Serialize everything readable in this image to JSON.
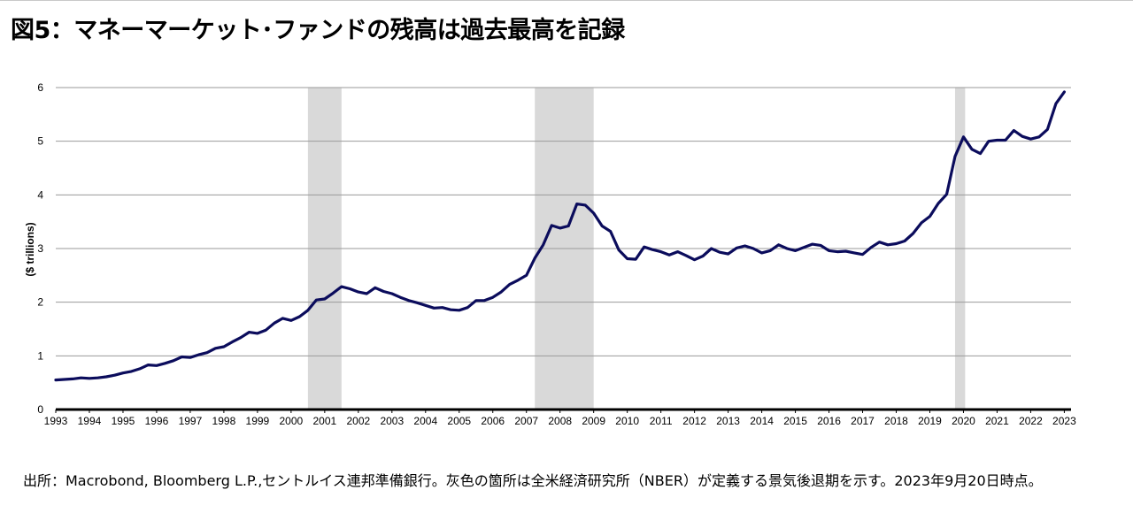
{
  "title": "図5：マネーマーケット･ファンドの残高は過去最高を記録",
  "source": "出所：Macrobond, Bloomberg L.P.,セントルイス連邦準備銀行。灰色の箇所は全米経済研究所（NBER）が定義する景気後退期を示す。2023年9月20日時点。",
  "chart_data": {
    "type": "line",
    "title": "図5：マネーマーケット･ファンドの残高は過去最高を記録",
    "xlabel": "",
    "ylabel": "($ trillions)",
    "ylim": [
      0,
      6
    ],
    "xlim": [
      1993,
      2023.2
    ],
    "yticks": [
      0,
      1,
      2,
      3,
      4,
      5,
      6
    ],
    "xticks": [
      "1993",
      "1994",
      "1995",
      "1996",
      "1997",
      "1998",
      "1999",
      "2000",
      "2001",
      "2002",
      "2003",
      "2004",
      "2005",
      "2006",
      "2007",
      "2008",
      "2009",
      "2010",
      "2011",
      "2012",
      "2013",
      "2014",
      "2015",
      "2016",
      "2017",
      "2018",
      "2019",
      "2020",
      "2021",
      "2022",
      "2023"
    ],
    "grid": "horizontal",
    "line_color": "#0b0c5c",
    "recession_color": "#d9d9d9",
    "recessions": [
      [
        2000.5,
        2001.5
      ],
      [
        2007.25,
        2009.0
      ],
      [
        2019.75,
        2020.05
      ]
    ],
    "series": [
      {
        "x": [
          1993.0,
          1993.25,
          1993.5,
          1993.75,
          1994.0,
          1994.25,
          1994.5,
          1994.75,
          1995.0,
          1995.25,
          1995.5,
          1995.75,
          1996.0,
          1996.25,
          1996.5,
          1996.75,
          1997.0,
          1997.25,
          1997.5,
          1997.75,
          1998.0,
          1998.25,
          1998.5,
          1998.75,
          1999.0,
          1999.25,
          1999.5,
          1999.75,
          2000.0,
          2000.25,
          2000.5,
          2000.75,
          2001.0,
          2001.25,
          2001.5,
          2001.75,
          2002.0,
          2002.25,
          2002.5,
          2002.75,
          2003.0,
          2003.25,
          2003.5,
          2003.75,
          2004.0,
          2004.25,
          2004.5,
          2004.75,
          2005.0,
          2005.25,
          2005.5,
          2005.75,
          2006.0,
          2006.25,
          2006.5,
          2006.75,
          2007.0,
          2007.25,
          2007.5,
          2007.75,
          2008.0,
          2008.25,
          2008.5,
          2008.75,
          2009.0,
          2009.25,
          2009.5,
          2009.75,
          2010.0,
          2010.25,
          2010.5,
          2010.75,
          2011.0,
          2011.25,
          2011.5,
          2011.75,
          2012.0,
          2012.25,
          2012.5,
          2012.75,
          2013.0,
          2013.25,
          2013.5,
          2013.75,
          2014.0,
          2014.25,
          2014.5,
          2014.75,
          2015.0,
          2015.25,
          2015.5,
          2015.75,
          2016.0,
          2016.25,
          2016.5,
          2016.75,
          2017.0,
          2017.25,
          2017.5,
          2017.75,
          2018.0,
          2018.25,
          2018.5,
          2018.75,
          2019.0,
          2019.25,
          2019.5,
          2019.75,
          2020.0,
          2020.25,
          2020.5,
          2020.75,
          2021.0,
          2021.25,
          2021.5,
          2021.75,
          2022.0,
          2022.25,
          2022.5,
          2022.75,
          2023.0
        ],
        "values": [
          0.55,
          0.56,
          0.57,
          0.59,
          0.58,
          0.59,
          0.61,
          0.64,
          0.68,
          0.71,
          0.76,
          0.83,
          0.82,
          0.86,
          0.91,
          0.98,
          0.97,
          1.02,
          1.06,
          1.14,
          1.17,
          1.26,
          1.34,
          1.44,
          1.42,
          1.48,
          1.61,
          1.7,
          1.66,
          1.73,
          1.85,
          2.04,
          2.06,
          2.17,
          2.29,
          2.25,
          2.19,
          2.16,
          2.27,
          2.2,
          2.16,
          2.09,
          2.03,
          1.99,
          1.94,
          1.89,
          1.9,
          1.86,
          1.85,
          1.9,
          2.03,
          2.03,
          2.09,
          2.19,
          2.33,
          2.41,
          2.5,
          2.82,
          3.07,
          3.43,
          3.38,
          3.42,
          3.83,
          3.81,
          3.66,
          3.42,
          3.32,
          2.97,
          2.81,
          2.8,
          3.03,
          2.98,
          2.94,
          2.88,
          2.94,
          2.87,
          2.79,
          2.86,
          3.0,
          2.93,
          2.9,
          3.01,
          3.05,
          3.0,
          2.92,
          2.96,
          3.07,
          3.0,
          2.96,
          3.02,
          3.08,
          3.06,
          2.96,
          2.94,
          2.95,
          2.92,
          2.89,
          3.02,
          3.12,
          3.07,
          3.09,
          3.14,
          3.28,
          3.48,
          3.6,
          3.84,
          4.01,
          4.72,
          5.08,
          4.85,
          4.77,
          5.0,
          5.02,
          5.02,
          5.2,
          5.09,
          5.04,
          5.08,
          5.22,
          5.7,
          5.92
        ]
      }
    ]
  }
}
